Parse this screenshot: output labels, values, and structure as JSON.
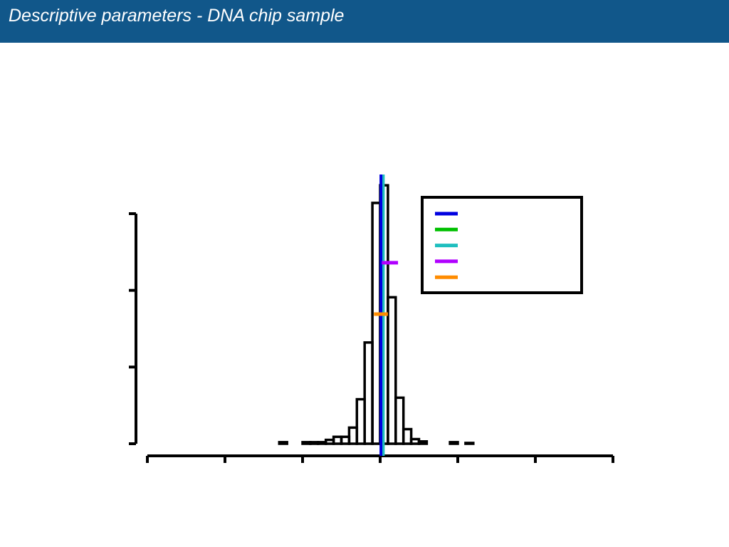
{
  "header": {
    "title": "Descriptive parameters - DNA chip sample"
  },
  "chart_data": {
    "type": "histogram",
    "bins": [
      -2.9,
      -2.8,
      -2.7,
      -2.6,
      -2.5,
      -2.4,
      -2.3,
      -2.2,
      -2.1,
      -2.0,
      -1.9,
      -1.8,
      -1.7,
      -1.6,
      -1.5,
      -1.4,
      -1.3,
      -1.2,
      -1.1,
      -1.0,
      -0.9,
      -0.8,
      -0.7,
      -0.6,
      -0.5,
      -0.4,
      -0.3,
      -0.2,
      -0.1,
      0,
      0.1,
      0.2,
      0.3,
      0.4,
      0.5,
      0.6,
      0.7,
      0.8,
      0.9,
      1.0,
      1.1,
      1.2,
      1.3,
      1.4,
      1.5,
      1.6,
      1.7,
      1.8,
      1.9,
      2.0,
      2.1,
      2.2,
      2.3,
      2.4,
      2.5,
      2.6,
      2.7,
      2.8
    ],
    "values": [
      0,
      0,
      0,
      0,
      0,
      0,
      0,
      0,
      0,
      0,
      0,
      0,
      0,
      0,
      0,
      0,
      0.02,
      0,
      0,
      0.02,
      0.02,
      0.02,
      0.05,
      0.09,
      0.09,
      0.21,
      0.58,
      1.32,
      3.14,
      3.37,
      1.91,
      0.6,
      0.19,
      0.06,
      0.03,
      0,
      0,
      0,
      0.02,
      0,
      0.01,
      0,
      0,
      0,
      0,
      0,
      0,
      0,
      0,
      0,
      0,
      0,
      0,
      0,
      0,
      0,
      0
    ],
    "color": "#000000",
    "xlim": [
      -3,
      3
    ],
    "xticks": [
      -3,
      -2,
      -1,
      0,
      1,
      2,
      3
    ],
    "ylim": [
      0,
      3
    ],
    "yticks": [
      0,
      1,
      2,
      3
    ],
    "reference_lines": [
      {
        "color": "#00c000",
        "x": 0.02
      },
      {
        "color": "#1fbfbf",
        "x": 0.04
      },
      {
        "color": "#0000e0",
        "x": 0.01
      }
    ],
    "markers": [
      {
        "color": "#b000ff",
        "y": 2.36,
        "x": [
          0.02,
          0.23
        ]
      },
      {
        "color": "#ff8c00",
        "y": 1.69,
        "x": [
          -0.08,
          0.1
        ]
      }
    ],
    "legend_colors": [
      "#0000e0",
      "#00c000",
      "#1fbfbf",
      "#b000ff",
      "#ff8c00"
    ]
  }
}
